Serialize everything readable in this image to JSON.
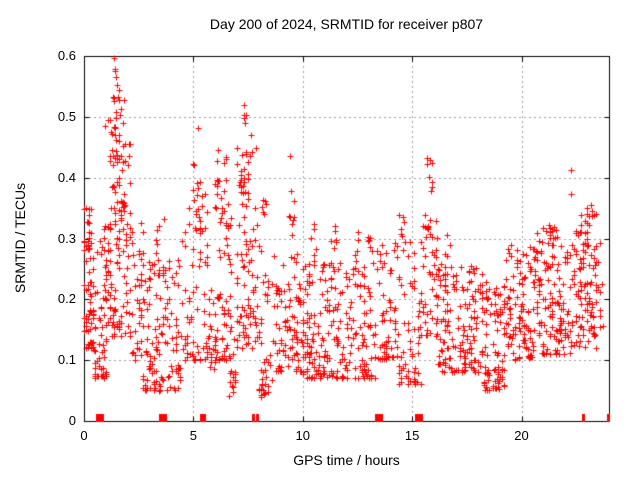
{
  "chart_data": {
    "type": "scatter",
    "title": "Day 200 of 2024, SRMTID for receiver p807",
    "xlabel": "GPS time / hours",
    "ylabel": "SRMTID / TECUs",
    "xlim": [
      0,
      24
    ],
    "ylim": [
      0,
      0.6
    ],
    "x_ticks": {
      "values": [
        0,
        5,
        10,
        15,
        20
      ],
      "labels": [
        "0",
        "5",
        "10",
        "15",
        "20"
      ]
    },
    "y_ticks": {
      "values": [
        0,
        0.1,
        0.2,
        0.3,
        0.4,
        0.5,
        0.6
      ],
      "labels": [
        "0",
        "0.1",
        "0.2",
        "0.3",
        "0.4",
        "0.5",
        "0.6"
      ]
    },
    "grid": true,
    "legend": "none",
    "marker": {
      "glyph": "plus",
      "size": 7,
      "color": "#ff0000"
    },
    "colors": {
      "axis": "#000000",
      "grid": "#a0a0a0",
      "background": "#ffffff",
      "text": "#000000"
    },
    "notable_points": [
      [
        1.39,
        0.596
      ],
      [
        1.43,
        0.576
      ],
      [
        1.5,
        0.552
      ],
      [
        1.55,
        0.532
      ],
      [
        5.2,
        0.482
      ],
      [
        7.3,
        0.52
      ],
      [
        7.33,
        0.503
      ],
      [
        7.37,
        0.49
      ],
      [
        9.42,
        0.435
      ],
      [
        15.7,
        0.432
      ],
      [
        22.25,
        0.413
      ],
      [
        22.25,
        0.373
      ],
      [
        23.2,
        0.345
      ]
    ],
    "clusters": [
      {
        "h0": 0.0,
        "h1": 0.45,
        "n": 60,
        "v0": 0.12,
        "v1": 0.35,
        "p": 1.6
      },
      {
        "h0": 0.0,
        "h1": 0.3,
        "n": 12,
        "v0": 0.28,
        "v1": 0.36,
        "p": 1.0
      },
      {
        "h0": 0.45,
        "h1": 1.05,
        "n": 50,
        "v0": 0.07,
        "v1": 0.3,
        "p": 1.7
      },
      {
        "h0": 0.9,
        "h1": 1.25,
        "n": 20,
        "v0": 0.2,
        "v1": 0.34,
        "p": 1.2
      },
      {
        "h0": 1.1,
        "h1": 2.15,
        "n": 70,
        "v0": 0.14,
        "v1": 0.4,
        "p": 1.5
      },
      {
        "h0": 1.25,
        "h1": 1.8,
        "n": 28,
        "v0": 0.33,
        "v1": 0.55,
        "p": 1.2
      },
      {
        "h0": 0.95,
        "h1": 1.9,
        "n": 20,
        "v0": 0.42,
        "v1": 0.53,
        "p": 1.0
      },
      {
        "h0": 1.35,
        "h1": 1.6,
        "n": 5,
        "v0": 0.5,
        "v1": 0.6,
        "p": 1.0
      },
      {
        "h0": 1.8,
        "h1": 2.2,
        "n": 16,
        "v0": 0.28,
        "v1": 0.46,
        "p": 1.2
      },
      {
        "h0": 2.2,
        "h1": 2.7,
        "n": 35,
        "v0": 0.1,
        "v1": 0.33,
        "p": 1.6
      },
      {
        "h0": 2.7,
        "h1": 4.45,
        "n": 120,
        "v0": 0.05,
        "v1": 0.27,
        "p": 1.6
      },
      {
        "h0": 3.2,
        "h1": 3.7,
        "n": 10,
        "v0": 0.24,
        "v1": 0.34,
        "p": 1.2
      },
      {
        "h0": 4.45,
        "h1": 5.65,
        "n": 65,
        "v0": 0.1,
        "v1": 0.38,
        "p": 1.7
      },
      {
        "h0": 4.95,
        "h1": 5.45,
        "n": 14,
        "v0": 0.3,
        "v1": 0.48,
        "p": 1.2
      },
      {
        "h0": 5.65,
        "h1": 6.0,
        "n": 20,
        "v0": 0.08,
        "v1": 0.22,
        "p": 1.5
      },
      {
        "h0": 5.95,
        "h1": 6.75,
        "n": 60,
        "v0": 0.1,
        "v1": 0.4,
        "p": 1.7
      },
      {
        "h0": 6.1,
        "h1": 6.55,
        "n": 14,
        "v0": 0.32,
        "v1": 0.45,
        "p": 1.1
      },
      {
        "h0": 6.55,
        "h1": 6.95,
        "n": 14,
        "v0": 0.04,
        "v1": 0.12,
        "p": 1.3
      },
      {
        "h0": 6.9,
        "h1": 7.95,
        "n": 80,
        "v0": 0.12,
        "v1": 0.45,
        "p": 1.7
      },
      {
        "h0": 7.15,
        "h1": 7.65,
        "n": 16,
        "v0": 0.36,
        "v1": 0.52,
        "p": 1.2
      },
      {
        "h0": 7.9,
        "h1": 8.65,
        "n": 40,
        "v0": 0.04,
        "v1": 0.24,
        "p": 1.5
      },
      {
        "h0": 8.0,
        "h1": 8.3,
        "n": 8,
        "v0": 0.27,
        "v1": 0.37,
        "p": 1.0
      },
      {
        "h0": 8.65,
        "h1": 9.85,
        "n": 75,
        "v0": 0.08,
        "v1": 0.28,
        "p": 1.6
      },
      {
        "h0": 9.3,
        "h1": 9.65,
        "n": 8,
        "v0": 0.28,
        "v1": 0.38,
        "p": 1.0
      },
      {
        "h0": 9.85,
        "h1": 13.35,
        "n": 230,
        "v0": 0.07,
        "v1": 0.26,
        "p": 1.6
      },
      {
        "h0": 10.4,
        "h1": 10.6,
        "n": 6,
        "v0": 0.26,
        "v1": 0.33,
        "p": 1.0
      },
      {
        "h0": 11.3,
        "h1": 11.55,
        "n": 6,
        "v0": 0.26,
        "v1": 0.34,
        "p": 1.0
      },
      {
        "h0": 12.4,
        "h1": 12.6,
        "n": 5,
        "v0": 0.26,
        "v1": 0.33,
        "p": 1.0
      },
      {
        "h0": 12.95,
        "h1": 13.25,
        "n": 8,
        "v0": 0.26,
        "v1": 0.33,
        "p": 1.0
      },
      {
        "h0": 13.35,
        "h1": 14.25,
        "n": 55,
        "v0": 0.1,
        "v1": 0.3,
        "p": 1.5
      },
      {
        "h0": 14.25,
        "h1": 15.45,
        "n": 65,
        "v0": 0.06,
        "v1": 0.3,
        "p": 1.6
      },
      {
        "h0": 14.35,
        "h1": 14.65,
        "n": 6,
        "v0": 0.28,
        "v1": 0.34,
        "p": 1.0
      },
      {
        "h0": 15.5,
        "h1": 16.15,
        "n": 40,
        "v0": 0.14,
        "v1": 0.33,
        "p": 1.4
      },
      {
        "h0": 15.55,
        "h1": 15.95,
        "n": 12,
        "v0": 0.3,
        "v1": 0.44,
        "p": 1.1
      },
      {
        "h0": 16.15,
        "h1": 18.25,
        "n": 150,
        "v0": 0.08,
        "v1": 0.26,
        "p": 1.6
      },
      {
        "h0": 16.5,
        "h1": 16.85,
        "n": 8,
        "v0": 0.24,
        "v1": 0.31,
        "p": 1.0
      },
      {
        "h0": 18.25,
        "h1": 19.25,
        "n": 85,
        "v0": 0.05,
        "v1": 0.23,
        "p": 1.6
      },
      {
        "h0": 19.25,
        "h1": 20.65,
        "n": 110,
        "v0": 0.1,
        "v1": 0.29,
        "p": 1.5
      },
      {
        "h0": 20.65,
        "h1": 21.65,
        "n": 85,
        "v0": 0.11,
        "v1": 0.33,
        "p": 1.5
      },
      {
        "h0": 21.1,
        "h1": 21.45,
        "n": 8,
        "v0": 0.27,
        "v1": 0.34,
        "p": 1.0
      },
      {
        "h0": 21.65,
        "h1": 22.45,
        "n": 55,
        "v0": 0.11,
        "v1": 0.3,
        "p": 1.5
      },
      {
        "h0": 22.45,
        "h1": 23.45,
        "n": 90,
        "v0": 0.12,
        "v1": 0.35,
        "p": 1.4
      },
      {
        "h0": 22.85,
        "h1": 23.25,
        "n": 10,
        "v0": 0.27,
        "v1": 0.36,
        "p": 1.0
      },
      {
        "h0": 23.4,
        "h1": 23.7,
        "n": 12,
        "v0": 0.14,
        "v1": 0.3,
        "p": 1.4
      }
    ],
    "seed": 11,
    "axis_markers": {
      "color": "#ff0000",
      "square_hours": [
        0.75,
        3.63,
        13.5,
        15.3
      ],
      "tick_hours": [
        5.35,
        5.5,
        7.72,
        7.9,
        22.8,
        23.95
      ]
    }
  }
}
